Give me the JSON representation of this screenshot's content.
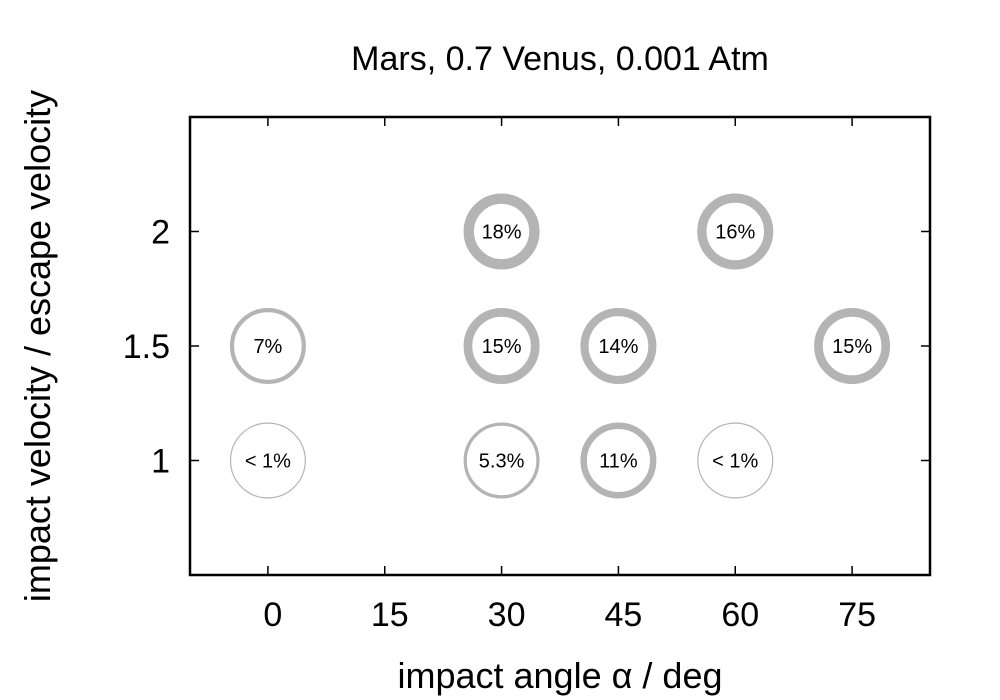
{
  "chart_data": {
    "type": "scatter",
    "title": "Mars, 0.7 Venus, 0.001 Atm",
    "xlabel": "impact angle α / deg",
    "ylabel": "impact velocity / escape velocity",
    "xlim": [
      -10,
      85
    ],
    "ylim": [
      0.5,
      2.5
    ],
    "x_ticks": [
      0,
      15,
      30,
      45,
      60,
      75
    ],
    "y_ticks": [
      1,
      1.5,
      2
    ],
    "grid": false,
    "legend": "none",
    "marker_color": "#b4b4b4",
    "points": [
      {
        "x": 30,
        "y": 2,
        "value": 18,
        "label": "18%"
      },
      {
        "x": 60,
        "y": 2,
        "value": 16,
        "label": "16%"
      },
      {
        "x": 0,
        "y": 1.5,
        "value": 7,
        "label": "7%"
      },
      {
        "x": 30,
        "y": 1.5,
        "value": 15,
        "label": "15%"
      },
      {
        "x": 45,
        "y": 1.5,
        "value": 14,
        "label": "14%"
      },
      {
        "x": 75,
        "y": 1.5,
        "value": 15,
        "label": "15%"
      },
      {
        "x": 0,
        "y": 1,
        "value": 0.5,
        "label": "< 1%"
      },
      {
        "x": 30,
        "y": 1,
        "value": 5.3,
        "label": "5.3%"
      },
      {
        "x": 45,
        "y": 1,
        "value": 11,
        "label": "11%"
      },
      {
        "x": 60,
        "y": 1,
        "value": 0.5,
        "label": "< 1%"
      }
    ]
  }
}
